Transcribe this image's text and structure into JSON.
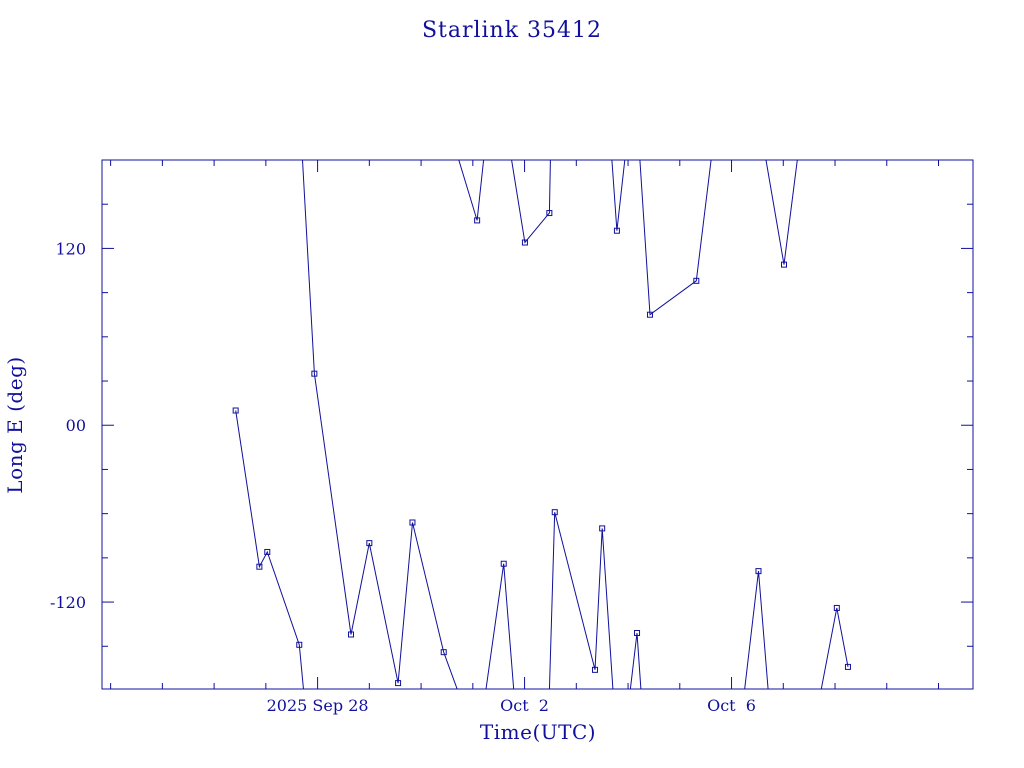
{
  "chart_data": {
    "type": "line",
    "title": "Starlink 35412",
    "xlabel": "Time(UTC)",
    "ylabel": "Long E (deg)",
    "x_tick_labels": [
      "2025 Sep 28",
      "Oct  2",
      "Oct  6"
    ],
    "y_tick_labels": [
      "120",
      "00",
      "-120"
    ],
    "x_ticks_major": [
      "2025-09-28",
      "2025-10-02",
      "2025-10-06"
    ],
    "y_ticks_major": [
      120,
      0,
      -120
    ],
    "xlim": [
      "2025-09-23T20:00",
      "2025-10-10T16:00"
    ],
    "ylim": [
      -179,
      180
    ],
    "grid": false,
    "color": "#10109c",
    "series": [
      {
        "points": [
          [
            "2025-09-26T10:00",
            10
          ],
          [
            "2025-09-26T21:00",
            -96
          ],
          [
            "2025-09-27T00:40",
            -86
          ],
          [
            "2025-09-27T15:30",
            -149
          ],
          [
            "2025-09-27T17:30",
            -180
          ],
          null,
          [
            "2025-09-27T17:00",
            180
          ],
          [
            "2025-09-27T22:30",
            35
          ],
          [
            "2025-09-28T15:30",
            -142
          ],
          [
            "2025-09-29T00:00",
            -80
          ],
          [
            "2025-09-29T13:20",
            -175
          ],
          [
            "2025-09-29T20:00",
            -66
          ],
          [
            "2025-09-30T10:30",
            -154
          ],
          [
            "2025-09-30T17:00",
            -180
          ],
          null,
          [
            "2025-09-30T17:30",
            180
          ],
          [
            "2025-10-01T02:00",
            139
          ],
          [
            "2025-10-01T05:00",
            180
          ],
          null,
          [
            "2025-10-01T06:00",
            -180
          ],
          [
            "2025-10-01T14:20",
            -94
          ],
          [
            "2025-10-01T19:00",
            -180
          ],
          null,
          [
            "2025-10-01T18:00",
            180
          ],
          [
            "2025-10-02T00:10",
            124
          ],
          [
            "2025-10-02T11:30",
            144
          ],
          [
            "2025-10-02T12:00",
            180
          ],
          null,
          [
            "2025-10-02T11:30",
            -180
          ],
          [
            "2025-10-02T14:00",
            -59
          ],
          [
            "2025-10-03T08:40",
            -166
          ],
          [
            "2025-10-03T12:00",
            -70
          ],
          [
            "2025-10-03T17:00",
            -180
          ],
          null,
          [
            "2025-10-03T16:30",
            180
          ],
          [
            "2025-10-03T18:50",
            132
          ],
          [
            "2025-10-03T22:30",
            180
          ],
          null,
          [
            "2025-10-04T01:00",
            -180
          ],
          [
            "2025-10-04T04:10",
            -141
          ],
          [
            "2025-10-04T06:00",
            -180
          ],
          null,
          [
            "2025-10-04T05:30",
            180
          ],
          [
            "2025-10-04T10:10",
            75
          ],
          [
            "2025-10-05T07:40",
            98
          ],
          [
            "2025-10-05T14:30",
            180
          ],
          null,
          [
            "2025-10-06T06:00",
            -180
          ],
          [
            "2025-10-06T12:30",
            -99
          ],
          [
            "2025-10-06T17:00",
            -180
          ],
          null,
          [
            "2025-10-06T16:00",
            180
          ],
          [
            "2025-10-07T00:20",
            109
          ],
          [
            "2025-10-07T06:30",
            180
          ],
          null,
          [
            "2025-10-07T17:30",
            -180
          ],
          [
            "2025-10-08T00:50",
            -124
          ],
          [
            "2025-10-08T06:00",
            -164
          ]
        ]
      }
    ]
  }
}
